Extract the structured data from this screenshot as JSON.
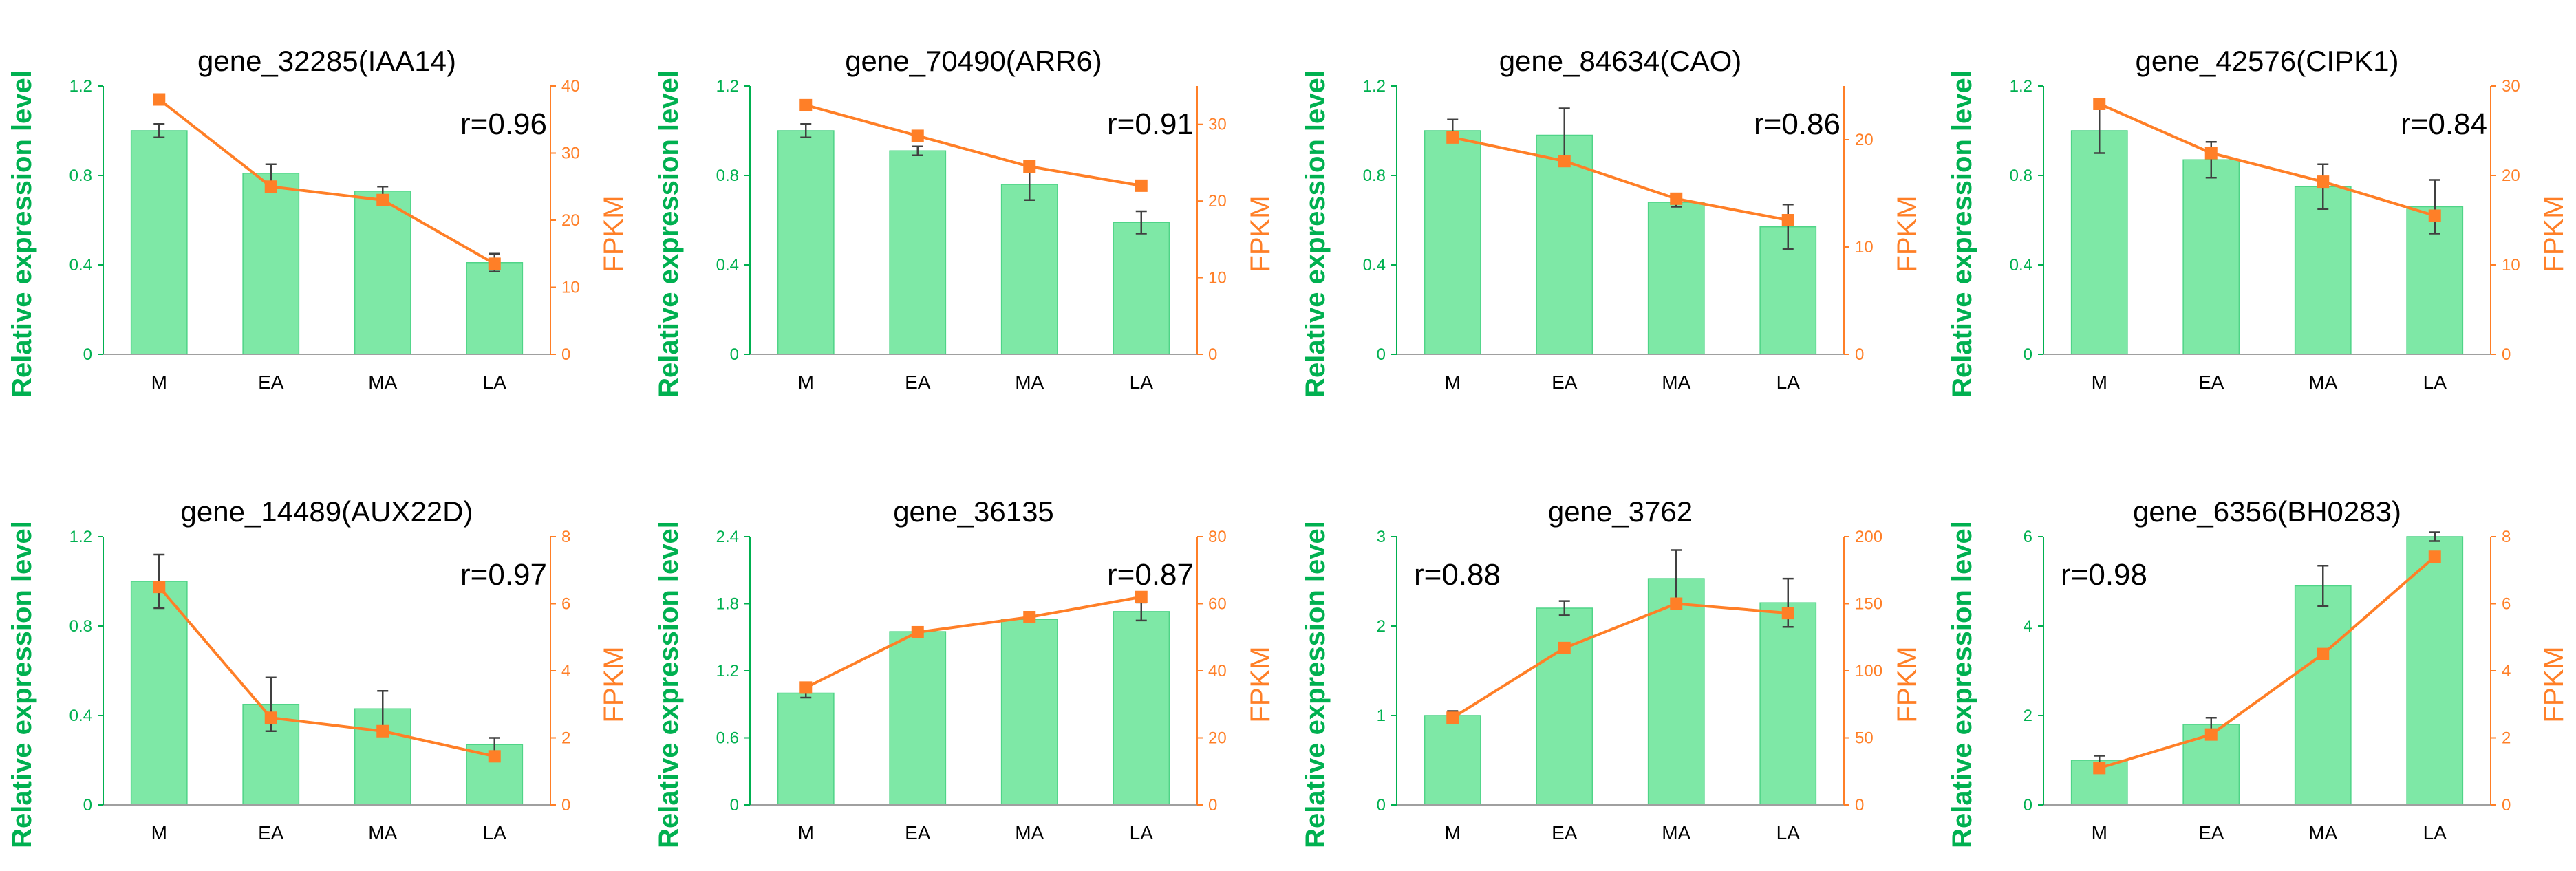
{
  "colors": {
    "bar_fill": "#7ee8a6",
    "bar_stroke": "#4fd487",
    "left_axis": "#00b050",
    "right_axis": "#ff7f27",
    "line": "#ff7f27",
    "errorbar": "#404040"
  },
  "chart_data": [
    {
      "type": "bar+line",
      "title": "gene_32285(IAA14)",
      "r_label": "r=0.96",
      "r_position": "top-right",
      "categories": [
        "M",
        "EA",
        "MA",
        "LA"
      ],
      "left_axis": {
        "label": "Relative expression level",
        "range": [
          0,
          1.2
        ],
        "ticks": [
          "0",
          "0.4",
          "0.8",
          "1.2"
        ]
      },
      "right_axis": {
        "label": "FPKM",
        "range": [
          0,
          40
        ],
        "ticks": [
          "0",
          "10",
          "20",
          "30",
          "40"
        ]
      },
      "series": [
        {
          "name": "Relative expression level",
          "kind": "bar",
          "axis": "left",
          "values": [
            1.0,
            0.81,
            0.73,
            0.41
          ],
          "errors": [
            0.03,
            0.04,
            0.02,
            0.04
          ]
        },
        {
          "name": "FPKM",
          "kind": "line",
          "axis": "right",
          "values": [
            38,
            25,
            23,
            13.5
          ]
        }
      ]
    },
    {
      "type": "bar+line",
      "title": "gene_70490(ARR6)",
      "r_label": "r=0.91",
      "r_position": "top-right",
      "categories": [
        "M",
        "EA",
        "MA",
        "LA"
      ],
      "left_axis": {
        "label": "Relative expression level",
        "range": [
          0,
          1.2
        ],
        "ticks": [
          "0",
          "0.4",
          "0.8",
          "1.2"
        ]
      },
      "right_axis": {
        "label": "FPKM",
        "range": [
          0,
          35
        ],
        "ticks": [
          "0",
          "10",
          "20",
          "30"
        ]
      },
      "series": [
        {
          "name": "Relative expression level",
          "kind": "bar",
          "axis": "left",
          "values": [
            1.0,
            0.91,
            0.76,
            0.59
          ],
          "errors": [
            0.03,
            0.02,
            0.07,
            0.05
          ]
        },
        {
          "name": "FPKM",
          "kind": "line",
          "axis": "right",
          "values": [
            32.5,
            28.5,
            24.5,
            22
          ]
        }
      ]
    },
    {
      "type": "bar+line",
      "title": "gene_84634(CAO)",
      "r_label": "r=0.86",
      "r_position": "top-right",
      "categories": [
        "M",
        "EA",
        "MA",
        "LA"
      ],
      "left_axis": {
        "label": "Relative expression level",
        "range": [
          0,
          1.2
        ],
        "ticks": [
          "0",
          "0.4",
          "0.8",
          "1.2"
        ]
      },
      "right_axis": {
        "label": "FPKM",
        "range": [
          0,
          25
        ],
        "ticks": [
          "0",
          "10",
          "20"
        ]
      },
      "series": [
        {
          "name": "Relative expression level",
          "kind": "bar",
          "axis": "left",
          "values": [
            1.0,
            0.98,
            0.68,
            0.57
          ],
          "errors": [
            0.05,
            0.12,
            0.02,
            0.1
          ]
        },
        {
          "name": "FPKM",
          "kind": "line",
          "axis": "right",
          "values": [
            20.2,
            18,
            14.5,
            12.5
          ]
        }
      ]
    },
    {
      "type": "bar+line",
      "title": "gene_42576(CIPK1)",
      "r_label": "r=0.84",
      "r_position": "top-right",
      "categories": [
        "M",
        "EA",
        "MA",
        "LA"
      ],
      "left_axis": {
        "label": "Relative expression level",
        "range": [
          0,
          1.2
        ],
        "ticks": [
          "0",
          "0.4",
          "0.8",
          "1.2"
        ]
      },
      "right_axis": {
        "label": "FPKM",
        "range": [
          0,
          30
        ],
        "ticks": [
          "0",
          "10",
          "20",
          "30"
        ]
      },
      "series": [
        {
          "name": "Relative expression level",
          "kind": "bar",
          "axis": "left",
          "values": [
            1.0,
            0.87,
            0.75,
            0.66
          ],
          "errors": [
            0.1,
            0.08,
            0.1,
            0.12
          ]
        },
        {
          "name": "FPKM",
          "kind": "line",
          "axis": "right",
          "values": [
            28,
            22.5,
            19.3,
            15.5
          ]
        }
      ]
    },
    {
      "type": "bar+line",
      "title": "gene_14489(AUX22D)",
      "r_label": "r=0.97",
      "r_position": "top-right",
      "categories": [
        "M",
        "EA",
        "MA",
        "LA"
      ],
      "left_axis": {
        "label": "Relative expression level",
        "range": [
          0,
          1.2
        ],
        "ticks": [
          "0",
          "0.4",
          "0.8",
          "1.2"
        ]
      },
      "right_axis": {
        "label": "FPKM",
        "range": [
          0,
          8
        ],
        "ticks": [
          "0",
          "2",
          "4",
          "6",
          "8"
        ]
      },
      "series": [
        {
          "name": "Relative expression level",
          "kind": "bar",
          "axis": "left",
          "values": [
            1.0,
            0.45,
            0.43,
            0.27
          ],
          "errors": [
            0.12,
            0.12,
            0.08,
            0.03
          ]
        },
        {
          "name": "FPKM",
          "kind": "line",
          "axis": "right",
          "values": [
            6.5,
            2.6,
            2.2,
            1.45
          ]
        }
      ]
    },
    {
      "type": "bar+line",
      "title": "gene_36135",
      "r_label": "r=0.87",
      "r_position": "top-right",
      "categories": [
        "M",
        "EA",
        "MA",
        "LA"
      ],
      "left_axis": {
        "label": "Relative expression level",
        "range": [
          0,
          2.4
        ],
        "ticks": [
          "0",
          "0.6",
          "1.2",
          "1.8",
          "2.4"
        ]
      },
      "right_axis": {
        "label": "FPKM",
        "range": [
          0,
          80
        ],
        "ticks": [
          "0",
          "20",
          "40",
          "60",
          "80"
        ]
      },
      "series": [
        {
          "name": "Relative expression level",
          "kind": "bar",
          "axis": "left",
          "values": [
            1.0,
            1.55,
            1.66,
            1.73
          ],
          "errors": [
            0.04,
            0.0,
            0.0,
            0.08
          ]
        },
        {
          "name": "FPKM",
          "kind": "line",
          "axis": "right",
          "values": [
            35,
            51.5,
            56,
            62
          ]
        }
      ]
    },
    {
      "type": "bar+line",
      "title": "gene_3762",
      "r_label": "r=0.88",
      "r_position": "top-left",
      "categories": [
        "M",
        "EA",
        "MA",
        "LA"
      ],
      "left_axis": {
        "label": "Relative expression level",
        "range": [
          0,
          3
        ],
        "ticks": [
          "0",
          "1",
          "2",
          "3"
        ]
      },
      "right_axis": {
        "label": "FPKM",
        "range": [
          0,
          200
        ],
        "ticks": [
          "0",
          "50",
          "100",
          "150",
          "200"
        ]
      },
      "series": [
        {
          "name": "Relative expression level",
          "kind": "bar",
          "axis": "left",
          "values": [
            1.0,
            2.2,
            2.53,
            2.26
          ],
          "errors": [
            0.05,
            0.08,
            0.32,
            0.27
          ]
        },
        {
          "name": "FPKM",
          "kind": "line",
          "axis": "right",
          "values": [
            65,
            117,
            150,
            143
          ]
        }
      ]
    },
    {
      "type": "bar+line",
      "title": "gene_6356(BH0283)",
      "r_label": "r=0.98",
      "r_position": "top-left",
      "categories": [
        "M",
        "EA",
        "MA",
        "LA"
      ],
      "left_axis": {
        "label": "Relative expression level",
        "range": [
          0,
          6
        ],
        "ticks": [
          "0",
          "2",
          "4",
          "6"
        ]
      },
      "right_axis": {
        "label": "FPKM",
        "range": [
          0,
          8
        ],
        "ticks": [
          "0",
          "2",
          "4",
          "6",
          "8"
        ]
      },
      "series": [
        {
          "name": "Relative expression level",
          "kind": "bar",
          "axis": "left",
          "values": [
            1.0,
            1.8,
            4.9,
            6.0
          ],
          "errors": [
            0.1,
            0.15,
            0.45,
            0.1
          ]
        },
        {
          "name": "FPKM",
          "kind": "line",
          "axis": "right",
          "values": [
            1.1,
            2.1,
            4.5,
            7.4
          ]
        }
      ]
    }
  ]
}
